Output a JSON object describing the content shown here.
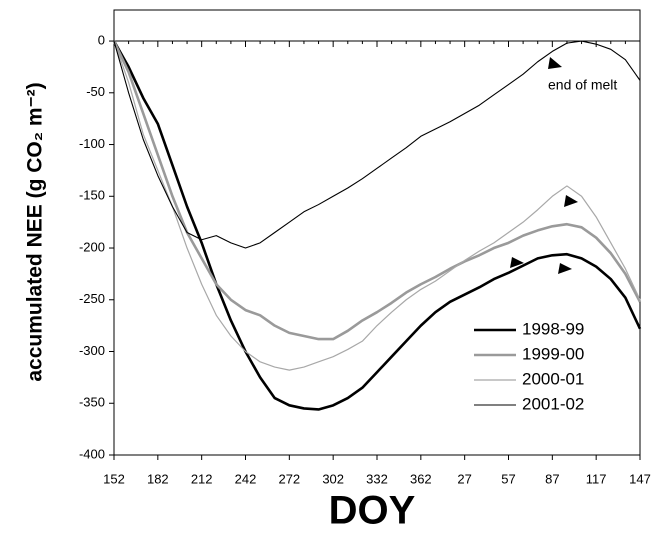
{
  "chart_data": {
    "type": "line",
    "y_label": "accumulated NEE  (g CO₂ m⁻²)",
    "x_label": "DOY",
    "annotations": [
      "end of melt"
    ],
    "categories": [
      "152",
      null,
      null,
      "182",
      null,
      null,
      "212",
      null,
      null,
      "242",
      null,
      null,
      "272",
      null,
      null,
      "302",
      null,
      null,
      "332",
      null,
      null,
      "362",
      null,
      null,
      "27",
      null,
      null,
      "57",
      null,
      null,
      "87",
      null,
      null,
      "117",
      null,
      null,
      "147"
    ],
    "ylim": [
      -400,
      30
    ],
    "yticks": [
      0,
      -50,
      -100,
      -150,
      -200,
      -250,
      -300,
      -350,
      -400
    ],
    "legend": "lower right",
    "series": [
      {
        "name": "1998-99",
        "color": "#000000",
        "width": 2.6,
        "values": [
          0,
          -25,
          -55,
          -80,
          -120,
          -160,
          -195,
          -235,
          -270,
          -300,
          -325,
          -345,
          -352,
          -355,
          -356,
          -352,
          -345,
          -335,
          -320,
          -305,
          -290,
          -275,
          -262,
          -252,
          -245,
          -238,
          -230,
          -224,
          -217,
          -210,
          -207,
          -206,
          -210,
          -218,
          -230,
          -248,
          -278
        ]
      },
      {
        "name": "1999-00",
        "color": "#9a9a9a",
        "width": 2.6,
        "values": [
          0,
          -30,
          -70,
          -110,
          -150,
          -185,
          -210,
          -235,
          -250,
          -260,
          -265,
          -275,
          -282,
          -285,
          -288,
          -288,
          -280,
          -270,
          -262,
          -253,
          -243,
          -235,
          -228,
          -220,
          -213,
          -207,
          -200,
          -195,
          -188,
          -183,
          -179,
          -177,
          -180,
          -190,
          -205,
          -225,
          -252
        ]
      },
      {
        "name": "2000-01",
        "color": "#a8a8a8",
        "width": 1.2,
        "values": [
          0,
          -40,
          -90,
          -125,
          -160,
          -200,
          -235,
          -265,
          -285,
          -300,
          -310,
          -315,
          -318,
          -315,
          -310,
          -305,
          -298,
          -290,
          -275,
          -262,
          -250,
          -240,
          -232,
          -222,
          -212,
          -203,
          -195,
          -185,
          -175,
          -163,
          -150,
          -140,
          -150,
          -170,
          -195,
          -220,
          -250
        ]
      },
      {
        "name": "2001-02",
        "color": "#000000",
        "width": 1.1,
        "values": [
          0,
          -50,
          -95,
          -130,
          -160,
          -185,
          -192,
          -188,
          -195,
          -200,
          -195,
          -185,
          -175,
          -165,
          -158,
          -150,
          -142,
          -133,
          -123,
          -113,
          -103,
          -92,
          -85,
          -78,
          -70,
          -62,
          -52,
          -42,
          -32,
          -20,
          -10,
          -2,
          0,
          -3,
          -8,
          -18,
          -38
        ]
      }
    ]
  }
}
